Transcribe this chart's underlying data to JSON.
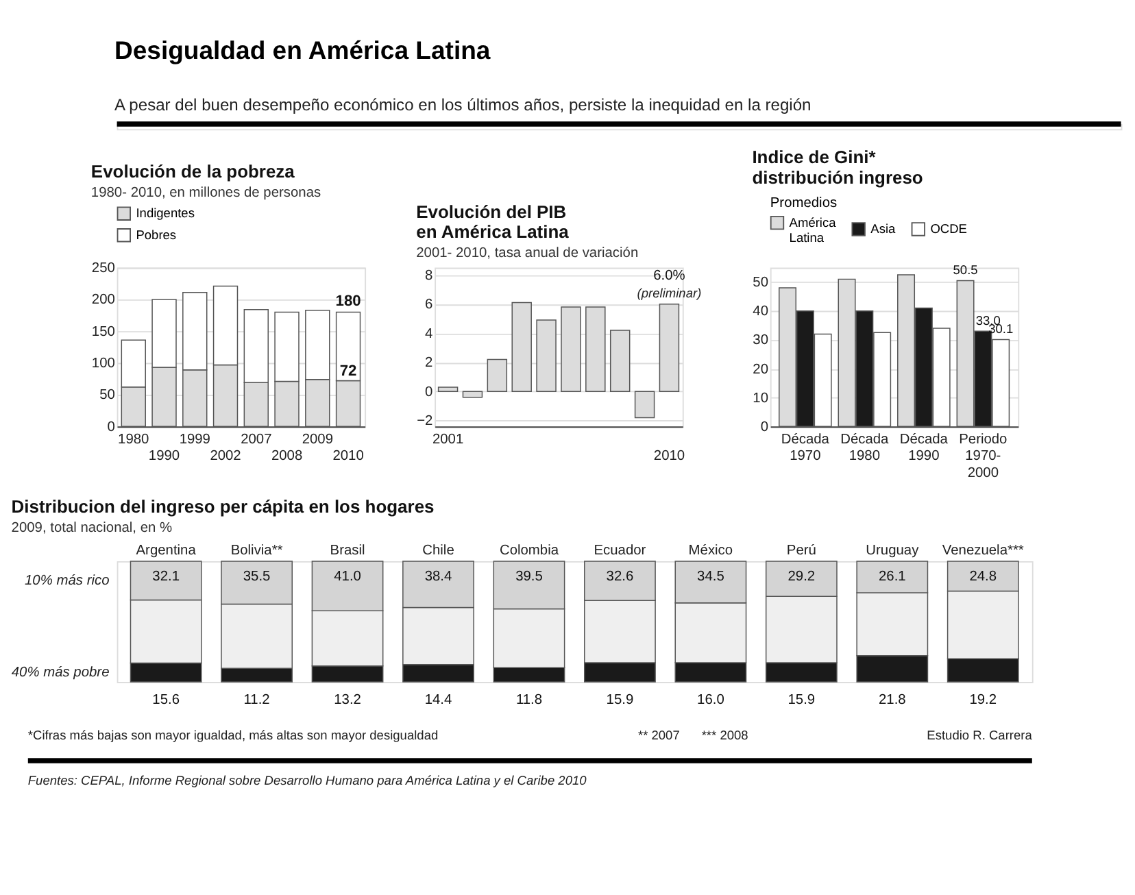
{
  "chart_data": [
    {
      "type": "other",
      "title": "Desigualdad en América Latina",
      "subtitle": "A pesar del buen desempeño económico en los últimos años, persiste la inequidad en la región"
    },
    {
      "type": "bar",
      "title": "Evolución de la pobreza",
      "subtitle": "1980- 2010, en millones de personas",
      "categories": [
        "1980",
        "1990",
        "1999",
        "2002",
        "2007",
        "2008",
        "2009",
        "2010"
      ],
      "stacked": true,
      "series": [
        {
          "name": "Indigentes",
          "color": "#dcdcdc",
          "values": [
            62,
            93,
            89,
            97,
            69,
            71,
            74,
            72
          ],
          "value_labels": [
            null,
            null,
            null,
            null,
            null,
            null,
            null,
            "72"
          ]
        },
        {
          "name": "Pobres",
          "color": "#ffffff",
          "values": [
            74,
            107,
            122,
            124,
            115,
            109,
            109,
            108
          ]
        }
      ],
      "totals": [
        null,
        null,
        null,
        null,
        null,
        null,
        null,
        "180"
      ],
      "ylim": [
        0,
        250
      ],
      "yticks": [
        0,
        50,
        100,
        150,
        200,
        250
      ],
      "grid": "y",
      "legend": "top"
    },
    {
      "type": "bar",
      "title": "Evolución del PIB\nen América Latina",
      "subtitle": "2001- 2010, tasa anual de variación",
      "categories": [
        "2001",
        null,
        null,
        null,
        null,
        null,
        null,
        null,
        null,
        "2010"
      ],
      "series": [
        {
          "color": "#dcdcdc",
          "values": [
            0.3,
            -0.4,
            2.2,
            6.1,
            4.9,
            5.8,
            5.8,
            4.2,
            -1.8,
            6.0
          ],
          "value_labels": [
            null,
            null,
            null,
            null,
            null,
            null,
            null,
            null,
            null,
            "6.0%"
          ]
        }
      ],
      "annotations": [
        {
          "text": "(preliminar)",
          "x": "2010",
          "y": 6.0
        }
      ],
      "ylim": [
        -2.4,
        8.5
      ],
      "yticks": [
        -2,
        0,
        2,
        4,
        6,
        8
      ],
      "grid": "y"
    },
    {
      "type": "bar",
      "title": "Indice de Gini*\ndistribución ingreso",
      "legend_title": "Promedios",
      "categories": [
        "Década\n1970",
        "Década\n1980",
        "Década\n1990",
        "Periodo\n1970-\n2000"
      ],
      "series": [
        {
          "name": "América\nLatina",
          "color": "#dcdcdc",
          "values": [
            48,
            51,
            52.5,
            50.5
          ],
          "value_labels": [
            null,
            null,
            null,
            "50.5"
          ]
        },
        {
          "name": "Asia",
          "color": "#1a1a1a",
          "values": [
            40,
            40,
            41,
            33.0
          ],
          "value_labels": [
            null,
            null,
            null,
            "33.0"
          ]
        },
        {
          "name": "OCDE",
          "color": "#ffffff",
          "values": [
            32,
            32.5,
            34,
            30.1
          ],
          "value_labels": [
            null,
            null,
            null,
            "30.1"
          ]
        }
      ],
      "ylim": [
        0,
        55
      ],
      "yticks": [
        0,
        10,
        20,
        30,
        40,
        50
      ],
      "grid": "y",
      "legend": "top"
    },
    {
      "type": "bar",
      "title": "Distribucion del ingreso per cápita en los hogares",
      "subtitle": "2009, total nacional, en %",
      "categories": [
        "Argentina",
        "Bolivia**",
        "Brasil",
        "Chile",
        "Colombia",
        "Ecuador",
        "México",
        "Perú",
        "Uruguay",
        "Venezuela***"
      ],
      "stacked": true,
      "series": [
        {
          "name": "40% más pobre",
          "color": "#1a1a1a",
          "values": [
            15.6,
            11.2,
            13.2,
            14.4,
            11.8,
            15.9,
            16.0,
            15.9,
            21.8,
            19.2
          ],
          "value_labels": [
            "15.6",
            "11.2",
            "13.2",
            "14.4",
            "11.8",
            "15.9",
            "16.0",
            "15.9",
            "21.8",
            "19.2"
          ]
        },
        {
          "color": "#efefef",
          "values": [
            52.3,
            53.3,
            45.8,
            47.2,
            48.7,
            51.5,
            49.5,
            54.9,
            52.1,
            56.0
          ]
        },
        {
          "name": "10% más rico",
          "color": "#d4d4d4",
          "values": [
            32.1,
            35.5,
            41.0,
            38.4,
            39.5,
            32.6,
            34.5,
            29.2,
            26.1,
            24.8
          ],
          "value_labels": [
            "32.1",
            "35.5",
            "41.0",
            "38.4",
            "39.5",
            "32.6",
            "34.5",
            "29.2",
            "26.1",
            "24.8"
          ]
        }
      ],
      "ylim": [
        0,
        100
      ],
      "tick_labels": "x",
      "annotations": [
        "*Cifras más bajas son mayor igualdad, más altas son mayor desigualdad",
        "** 2007",
        "*** 2008",
        "Estudio R. Carrera",
        "Fuentes: CEPAL, Informe Regional sobre Desarrollo Humano para América Latina y el Caribe 2010"
      ]
    }
  ]
}
